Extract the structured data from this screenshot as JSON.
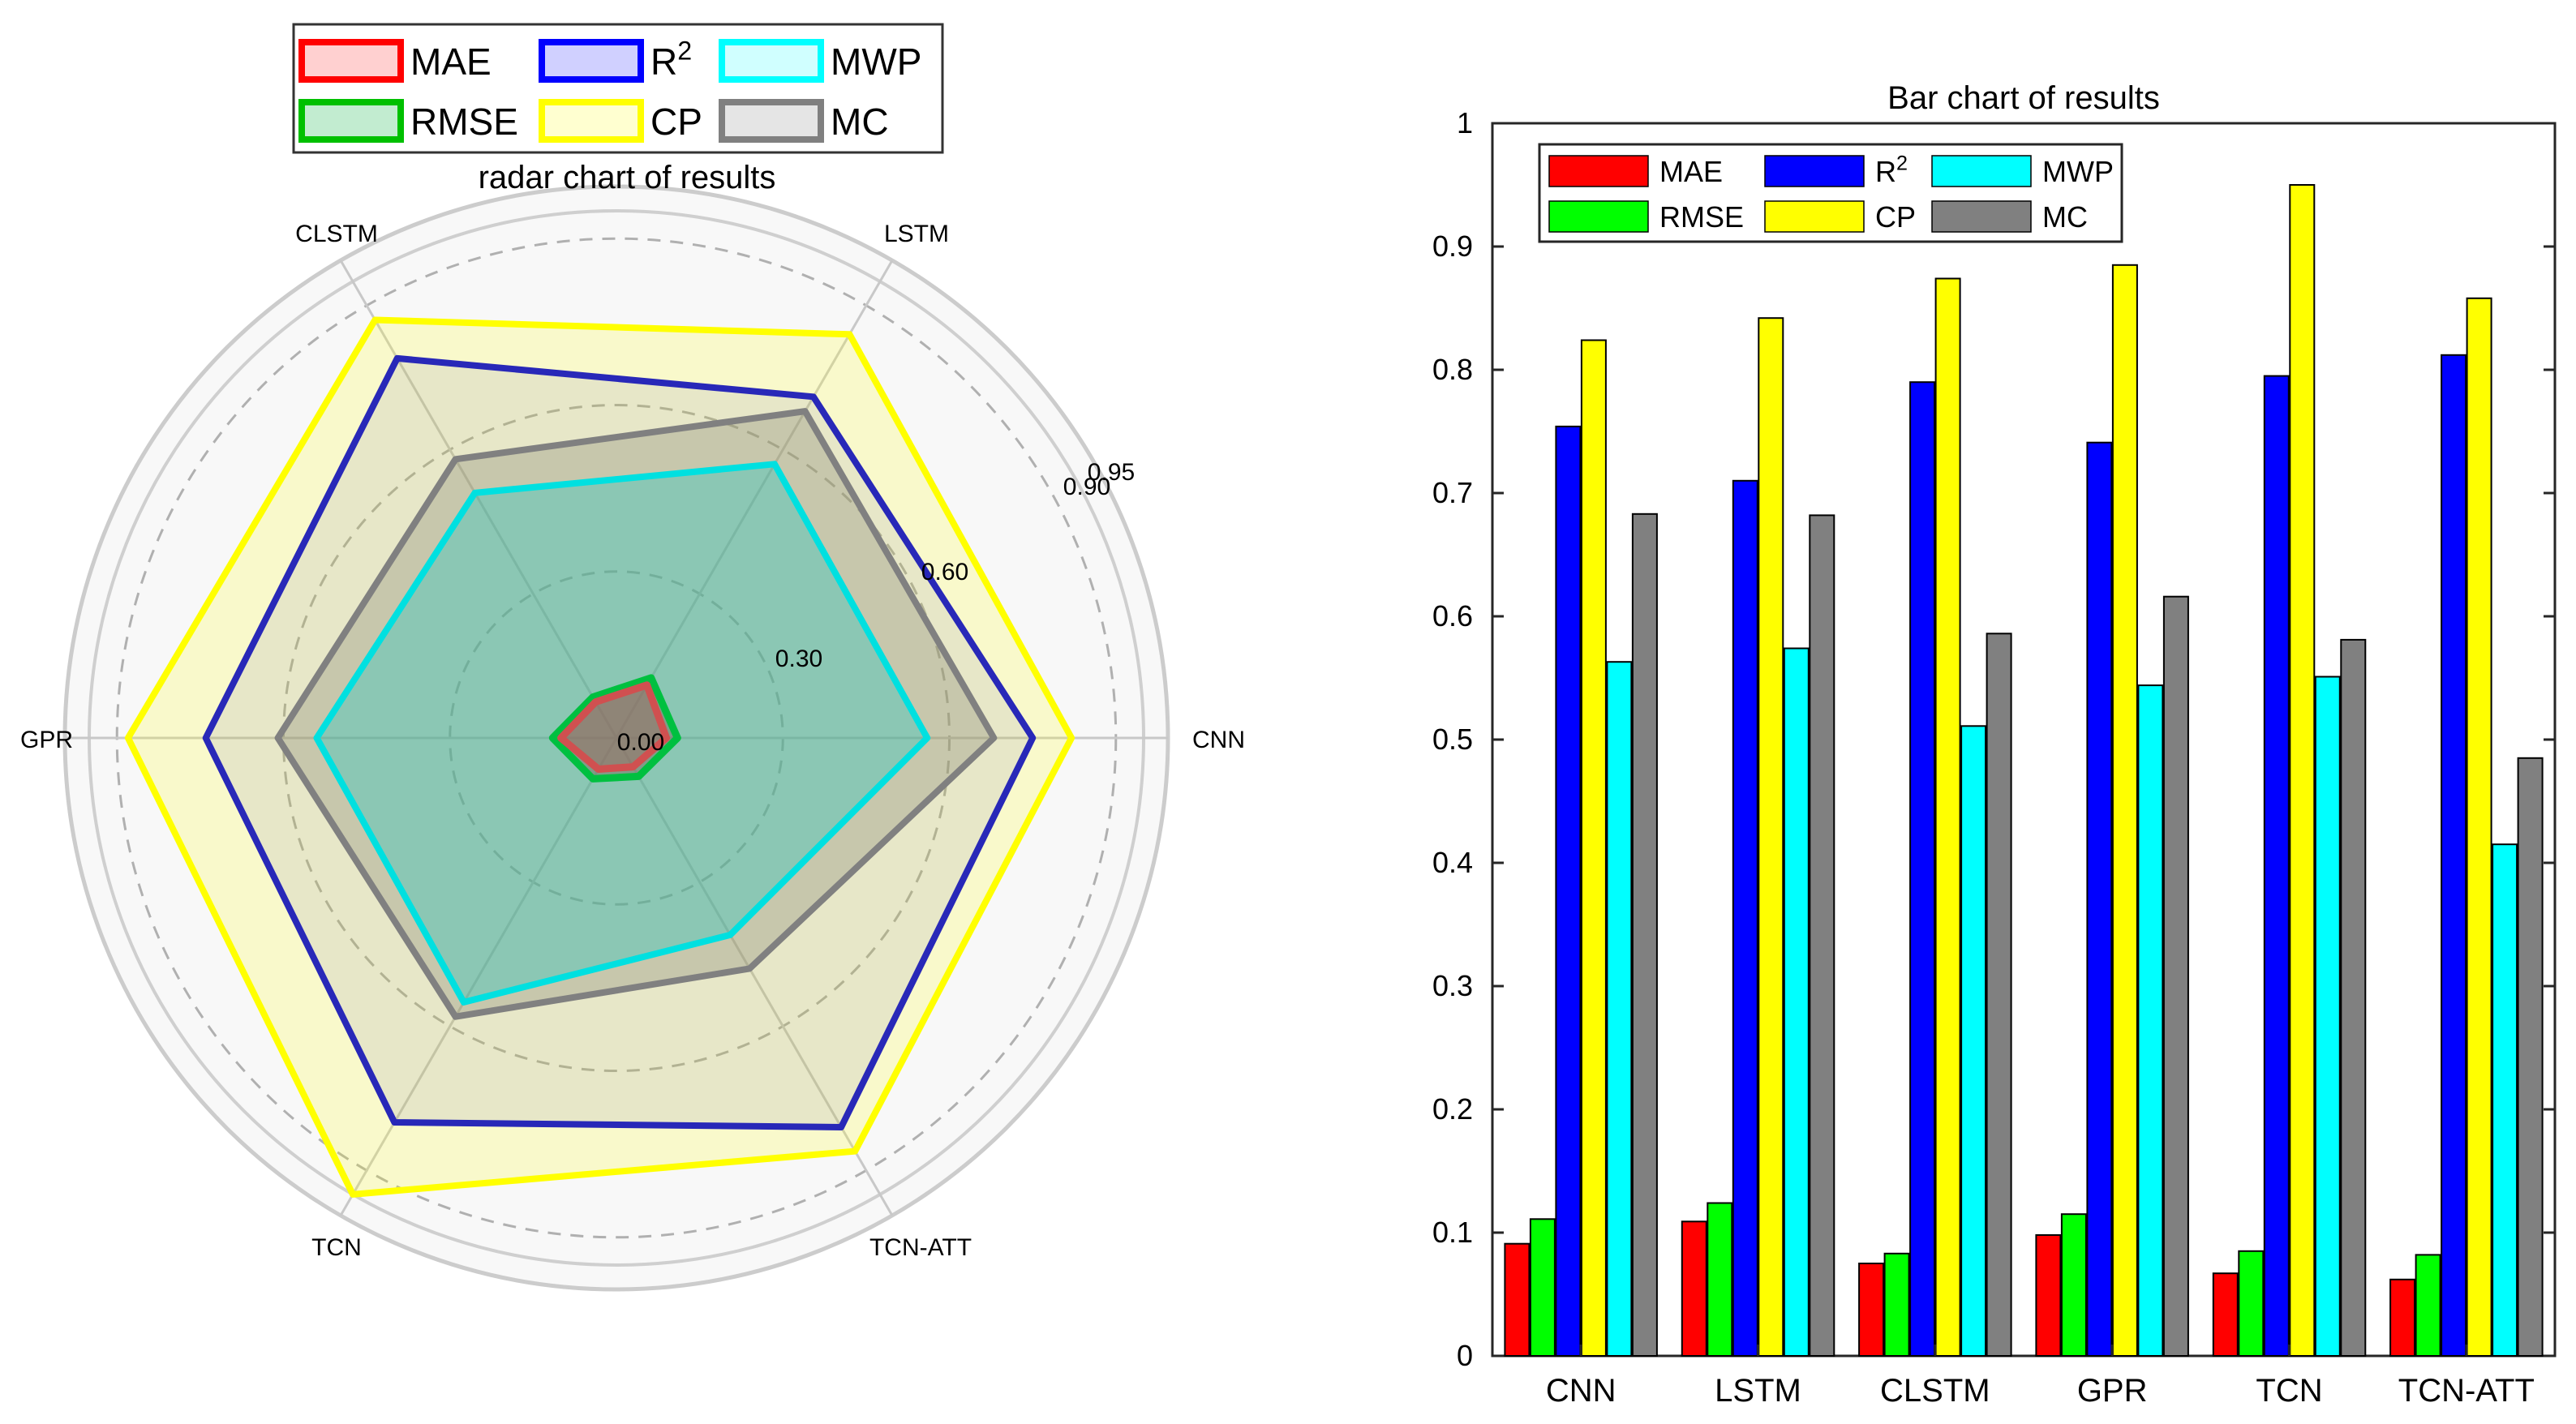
{
  "chart_data": [
    {
      "type": "radar",
      "title": "radar chart of results",
      "axes": [
        "CNN",
        "LSTM",
        "CLSTM",
        "GPR",
        "TCN",
        "TCN-ATT"
      ],
      "rlim": [
        0,
        0.95
      ],
      "rticks": [
        0.0,
        0.3,
        0.6,
        0.9,
        0.95
      ],
      "rtick_labels": [
        "0.00",
        "0.30",
        "0.60",
        "0.90",
        "0.95"
      ],
      "series": [
        {
          "name": "MAE",
          "values": [
            0.09,
            0.11,
            0.075,
            0.1,
            0.065,
            0.06
          ],
          "color": "#ff0000"
        },
        {
          "name": "RMSE",
          "values": [
            0.11,
            0.125,
            0.085,
            0.115,
            0.085,
            0.08
          ],
          "color": "#00c000"
        },
        {
          "name": "R2",
          "values": [
            0.75,
            0.71,
            0.79,
            0.74,
            0.8,
            0.81
          ],
          "color": "#0000ff"
        },
        {
          "name": "CP",
          "values": [
            0.82,
            0.84,
            0.87,
            0.88,
            0.95,
            0.86
          ],
          "color": "#ffff00"
        },
        {
          "name": "MWP",
          "values": [
            0.56,
            0.57,
            0.51,
            0.54,
            0.55,
            0.41
          ],
          "color": "#00ffff"
        },
        {
          "name": "MC",
          "values": [
            0.68,
            0.68,
            0.58,
            0.61,
            0.58,
            0.48
          ],
          "color": "#808080"
        }
      ],
      "legend": [
        {
          "label": "MAE",
          "sup": "",
          "color": "#ff0000"
        },
        {
          "label": "R",
          "sup": "2",
          "color": "#0000ff"
        },
        {
          "label": "MWP",
          "sup": "",
          "color": "#00ffff"
        },
        {
          "label": "RMSE",
          "sup": "",
          "color": "#00c000"
        },
        {
          "label": "CP",
          "sup": "",
          "color": "#ffff00"
        },
        {
          "label": "MC",
          "sup": "",
          "color": "#808080"
        }
      ],
      "legend_placement": "top"
    },
    {
      "type": "bar",
      "title": "Bar chart of results",
      "categories": [
        "CNN",
        "LSTM",
        "CLSTM",
        "GPR",
        "TCN",
        "TCN-ATT"
      ],
      "series": [
        {
          "name": "MAE",
          "values": [
            0.091,
            0.109,
            0.075,
            0.098,
            0.067,
            0.062
          ],
          "color": "#ff0000"
        },
        {
          "name": "RMSE",
          "values": [
            0.111,
            0.124,
            0.083,
            0.115,
            0.085,
            0.082
          ],
          "color": "#00ff00"
        },
        {
          "name": "R2",
          "values": [
            0.754,
            0.71,
            0.79,
            0.741,
            0.795,
            0.812
          ],
          "color": "#0000ff"
        },
        {
          "name": "CP",
          "values": [
            0.824,
            0.842,
            0.874,
            0.885,
            0.95,
            0.858
          ],
          "color": "#ffff00"
        },
        {
          "name": "MWP",
          "values": [
            0.563,
            0.574,
            0.511,
            0.544,
            0.551,
            0.415
          ],
          "color": "#00ffff"
        },
        {
          "name": "MC",
          "values": [
            0.683,
            0.682,
            0.586,
            0.616,
            0.581,
            0.485
          ],
          "color": "#808080"
        }
      ],
      "ylim": [
        0,
        1
      ],
      "yticks": [
        "0",
        "0.1",
        "0.2",
        "0.3",
        "0.4",
        "0.5",
        "0.6",
        "0.7",
        "0.8",
        "0.9",
        "1"
      ],
      "xlabel": "",
      "ylabel": "",
      "grid": false,
      "legend": [
        {
          "label": "MAE",
          "sup": "",
          "color": "#ff0000"
        },
        {
          "label": "R",
          "sup": "2",
          "color": "#0000ff"
        },
        {
          "label": "MWP",
          "sup": "",
          "color": "#00ffff"
        },
        {
          "label": "RMSE",
          "sup": "",
          "color": "#00ff00"
        },
        {
          "label": "CP",
          "sup": "",
          "color": "#ffff00"
        },
        {
          "label": "MC",
          "sup": "",
          "color": "#808080"
        }
      ],
      "legend_placement": "top-left"
    }
  ]
}
